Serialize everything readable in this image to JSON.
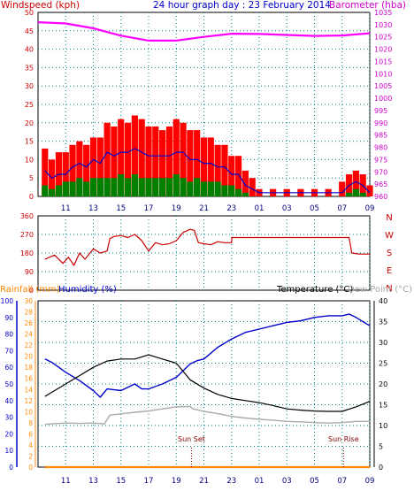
{
  "header": {
    "windspeed_label": "Windspeed (kph)",
    "title": "24 hour graph day : 23 February 2014",
    "barometer_label": "Barometer (hba)"
  },
  "colors": {
    "wind_speed": "#ff0000",
    "wind_gust": "#0000cc",
    "wind_avg": "#008000",
    "barometer": "#ff00ff",
    "direction": "#cc0000",
    "humidity": "#0000cc",
    "rainfall": "#ff8800",
    "temperature": "#000000",
    "dewpoint": "#aaaaaa",
    "axis_red": "#cc0000",
    "axis_magenta": "#cc00cc",
    "axis_blue": "#0000cc",
    "axis_orange": "#ff8800",
    "grid": "#008080"
  },
  "x_ticks": [
    "11",
    "13",
    "15",
    "17",
    "19",
    "21",
    "23",
    "01",
    "03",
    "05",
    "07",
    "09"
  ],
  "chart_data": [
    {
      "type": "line",
      "title": "24 hour graph day : 23 February 2014",
      "x_unit": "hour of day",
      "ylabel": "Windspeed (kph)",
      "y2label": "Barometer (hba)",
      "ylim": [
        0,
        50
      ],
      "y2lim": [
        960,
        1035
      ],
      "yticks": [
        0,
        5,
        10,
        15,
        20,
        25,
        30,
        35,
        40,
        45,
        50
      ],
      "y2ticks": [
        960,
        965,
        970,
        975,
        980,
        985,
        990,
        995,
        1000,
        1005,
        1010,
        1015,
        1020,
        1025,
        1030,
        1035
      ],
      "series": [
        {
          "key": "windspeed",
          "style": "bars",
          "x": [
            9.5,
            10,
            10.5,
            11,
            11.5,
            12,
            12.5,
            13,
            13.5,
            14,
            14.5,
            15,
            15.5,
            16,
            16.5,
            17,
            17.5,
            18,
            18.5,
            19,
            19.5,
            20,
            20.5,
            21,
            21.5,
            22,
            22.5,
            23,
            23.5,
            24,
            24.5,
            25,
            26,
            27,
            28,
            29,
            30,
            31,
            31.5,
            32,
            32.5,
            33
          ],
          "values": [
            13,
            10,
            12,
            12,
            14,
            15,
            14,
            16,
            16,
            20,
            19,
            21,
            20,
            22,
            21,
            19,
            19,
            18,
            19,
            21,
            20,
            18,
            18,
            16,
            16,
            14,
            14,
            11,
            11,
            7,
            5,
            2,
            2,
            2,
            2,
            2,
            2,
            4,
            6,
            7,
            6,
            3
          ]
        },
        {
          "key": "gust",
          "style": "line",
          "x": [
            9.5,
            10,
            10.5,
            11,
            11.5,
            12,
            12.5,
            13,
            13.5,
            14,
            14.5,
            15,
            15.5,
            16,
            16.5,
            17,
            17.5,
            18,
            18.5,
            19,
            19.5,
            20,
            20.5,
            21,
            21.5,
            22,
            22.5,
            23,
            23.5,
            24,
            24.5,
            25,
            31,
            31.5,
            32,
            32.5,
            33
          ],
          "values": [
            7,
            5,
            6,
            6,
            8,
            9,
            8,
            10,
            9,
            12,
            11,
            12,
            12,
            13,
            12,
            11,
            11,
            11,
            11,
            12,
            12,
            10,
            10,
            9,
            9,
            8,
            8,
            6,
            6,
            3,
            2,
            1,
            1,
            3,
            4,
            3,
            1
          ]
        },
        {
          "key": "average",
          "style": "bars",
          "x": [
            9.5,
            10,
            10.5,
            11,
            11.5,
            12,
            12.5,
            13,
            13.5,
            14,
            14.5,
            15,
            15.5,
            16,
            16.5,
            17,
            17.5,
            18,
            18.5,
            19,
            19.5,
            20,
            20.5,
            21,
            21.5,
            22,
            22.5,
            23,
            23.5,
            24,
            31.5,
            32,
            32.5
          ],
          "values": [
            3,
            2,
            3,
            4,
            4,
            5,
            4,
            5,
            5,
            5,
            5,
            6,
            5,
            6,
            5,
            5,
            5,
            5,
            5,
            6,
            5,
            4,
            5,
            4,
            4,
            4,
            3,
            3,
            2,
            1,
            1,
            2,
            1
          ]
        },
        {
          "key": "barometer",
          "axis": "y2",
          "x": [
            9,
            11,
            13,
            15,
            17,
            19,
            21,
            23,
            25,
            27,
            29,
            31,
            33
          ],
          "values": [
            1031,
            1030.5,
            1028.5,
            1025.5,
            1023.5,
            1023.5,
            1025,
            1026.3,
            1026.2,
            1025.8,
            1025.4,
            1025.6,
            1026.5
          ]
        }
      ]
    },
    {
      "type": "line",
      "ylim": [
        0,
        360
      ],
      "yticks": [
        0,
        90,
        180,
        270,
        360
      ],
      "right_labels": [
        "N",
        "W",
        "S",
        "E",
        "N"
      ],
      "series": [
        {
          "key": "direction",
          "x": [
            9.5,
            10.2,
            10.8,
            11.2,
            11.6,
            12,
            12.4,
            13,
            13.5,
            14,
            14.2,
            14.5,
            15,
            15.5,
            16,
            16.5,
            17,
            17.5,
            18,
            18.5,
            19,
            19.5,
            20,
            20.3,
            20.6,
            21,
            21.5,
            22,
            22.5,
            23,
            23.02,
            25,
            27,
            29,
            31,
            31.5,
            31.7,
            32.2,
            33
          ],
          "values": [
            150,
            170,
            130,
            160,
            120,
            180,
            150,
            200,
            180,
            190,
            250,
            260,
            265,
            255,
            270,
            240,
            190,
            230,
            220,
            225,
            240,
            280,
            295,
            290,
            230,
            225,
            220,
            235,
            230,
            230,
            255,
            255,
            255,
            255,
            255,
            255,
            180,
            175,
            175
          ]
        }
      ]
    },
    {
      "type": "line",
      "ylabel": "Humidity (%)",
      "y_rain_label": "Rainfall (mm)",
      "y2label": "Temperature (°C)",
      "y3label": "Dew Point (°C)",
      "ylim": [
        0,
        100
      ],
      "y2lim": [
        0,
        40
      ],
      "yticks": [
        0,
        10,
        20,
        30,
        40,
        50,
        60,
        70,
        80,
        90,
        100
      ],
      "rain_ticks": [
        0,
        2,
        4,
        6,
        8,
        10,
        12,
        14,
        16,
        18,
        20,
        22,
        24,
        26,
        28,
        30
      ],
      "y2ticks": [
        0,
        5,
        10,
        15,
        20,
        25,
        30,
        35,
        40
      ],
      "annotations": [
        {
          "text": "Sun Set",
          "x": 20.1
        },
        {
          "text": "Sun Rise",
          "x": 31.1
        }
      ],
      "series": [
        {
          "key": "temperature",
          "axis": "y2",
          "x": [
            9.5,
            10,
            11,
            12,
            13,
            14,
            15,
            16,
            17,
            18,
            19,
            20,
            21,
            22,
            23,
            24,
            25,
            26,
            27,
            28,
            29,
            30,
            31,
            32,
            33
          ],
          "values": [
            17,
            18,
            20,
            22,
            24,
            25.5,
            26,
            26,
            27,
            26,
            25,
            21,
            19,
            17.5,
            16.5,
            16,
            15.5,
            14.8,
            14,
            13.7,
            13.5,
            13.4,
            13.4,
            14.5,
            15.8
          ]
        },
        {
          "key": "humidity",
          "axis": "y",
          "x": [
            9.5,
            10,
            11,
            12,
            13,
            13.5,
            14,
            15,
            16,
            16.5,
            17,
            18,
            19,
            20,
            20.5,
            21,
            22,
            23,
            24,
            25,
            26,
            27,
            28,
            29,
            30,
            31,
            31.5,
            32,
            33
          ],
          "values": [
            65,
            63,
            57,
            52,
            46,
            42,
            47,
            46,
            50,
            47,
            47,
            50,
            54,
            62,
            64,
            65,
            72,
            77,
            81,
            83,
            85,
            87,
            88,
            90,
            91,
            91,
            92,
            90,
            85
          ]
        },
        {
          "key": "dewpoint",
          "axis": "y2",
          "x": [
            9.5,
            10,
            11,
            12,
            13,
            13.8,
            14.2,
            15,
            16,
            17,
            18,
            19,
            20,
            20.2,
            21,
            22,
            23,
            24,
            25,
            26,
            27,
            28,
            29,
            30,
            31,
            32,
            33
          ],
          "values": [
            10.3,
            10.4,
            10.6,
            10.5,
            10.6,
            10.4,
            12.5,
            12.8,
            13.2,
            13.5,
            14,
            14.5,
            14.6,
            14,
            13.4,
            12.9,
            12.2,
            11.8,
            11.5,
            11.3,
            11,
            10.9,
            10.7,
            10.6,
            10.7,
            11,
            11
          ]
        },
        {
          "key": "rainfall",
          "axis": "rain",
          "x": [
            9.5,
            33
          ],
          "values": [
            0,
            0
          ]
        }
      ]
    }
  ],
  "panel3_header": {
    "rainfall_label": "Rainfall (mm)",
    "humidity_label": "Humidity (%)",
    "temperature_label": "Temperature (°C)",
    "dewpoint_label": "Dew Point (°C)"
  }
}
